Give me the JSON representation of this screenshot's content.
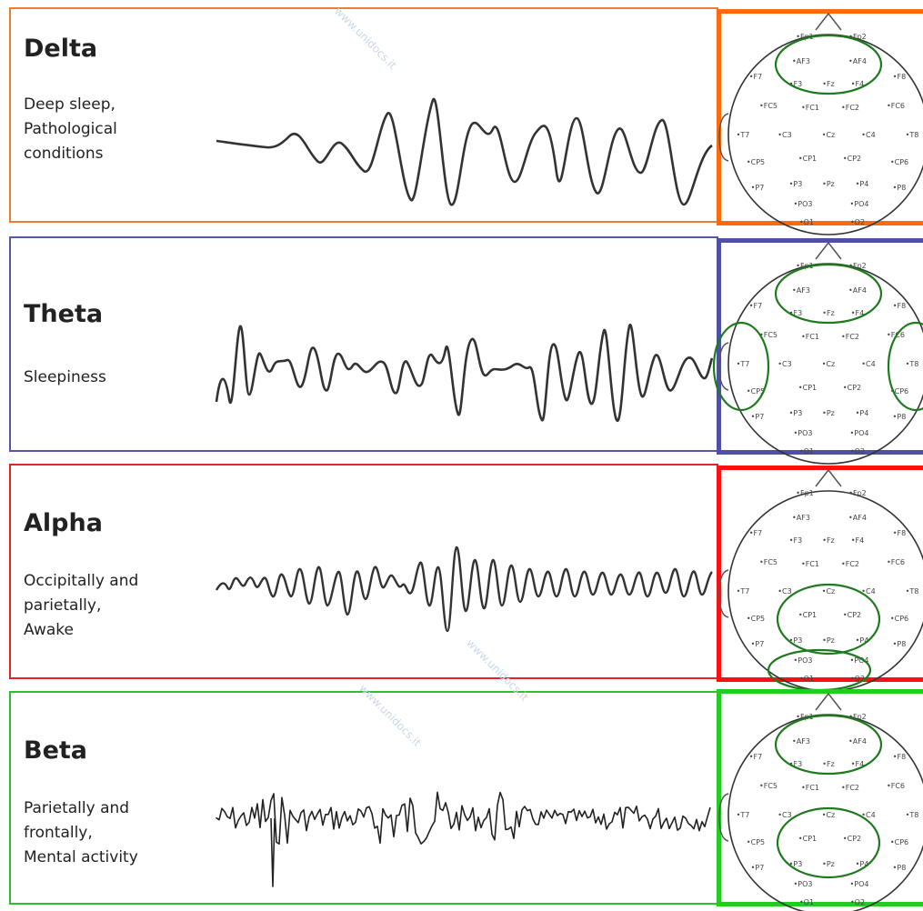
{
  "bands": [
    {
      "name": "Delta",
      "description": "Deep sleep,\nPathological\nconditions",
      "color": "#ed7d31",
      "map_border_color": "#ff6a0a",
      "regions": [
        "frontal"
      ]
    },
    {
      "name": "Theta",
      "description": "Sleepiness",
      "color": "#5757a8",
      "map_border_color": "#4f4fa6",
      "regions": [
        "frontal",
        "left-temporal",
        "right-temporal"
      ]
    },
    {
      "name": "Alpha",
      "description": "Occipitally and\nparietally,\nAwake",
      "color": "#e42424",
      "map_border_color": "#ff1010",
      "regions": [
        "parietal",
        "occipital"
      ]
    },
    {
      "name": "Beta",
      "description": "Parietally and\nfrontally,\nMental activity",
      "color": "#2cc02c",
      "map_border_color": "#22cc22",
      "regions": [
        "frontal",
        "parietal"
      ]
    }
  ],
  "electrodes": [
    "Fp1",
    "Fp2",
    "AF3",
    "AF4",
    "F7",
    "F3",
    "Fz",
    "F4",
    "F8",
    "FC5",
    "FC1",
    "FC2",
    "FC6",
    "T7",
    "C3",
    "Cz",
    "C4",
    "T8",
    "CP5",
    "CP1",
    "CP2",
    "CP6",
    "P7",
    "P3",
    "Pz",
    "P4",
    "P8",
    "PO3",
    "PO4",
    "O1",
    "O2"
  ],
  "watermark": "www.unidocs.it",
  "region_color": "#1e7a1e"
}
